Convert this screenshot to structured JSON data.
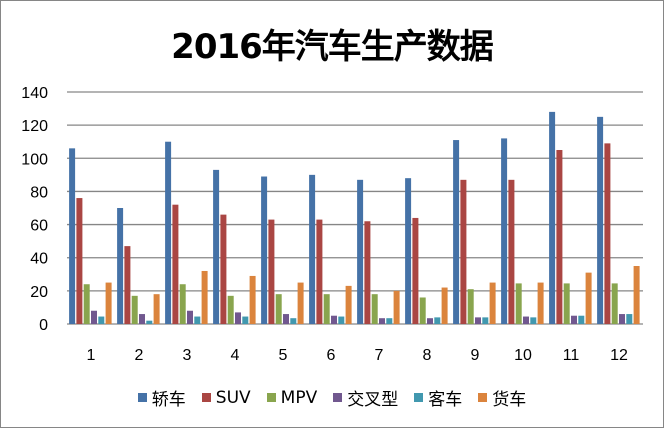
{
  "chart_data": {
    "type": "bar",
    "title": "2016年汽车生产数据",
    "xlabel": "",
    "ylabel": "",
    "ylim": [
      0,
      140
    ],
    "yticks": [
      0,
      20,
      40,
      60,
      80,
      100,
      120,
      140
    ],
    "grid": true,
    "legend_position": "bottom",
    "categories": [
      "1",
      "2",
      "3",
      "4",
      "5",
      "6",
      "7",
      "8",
      "9",
      "10",
      "11",
      "12"
    ],
    "series": [
      {
        "name": "轿车",
        "color": "#4572A7",
        "values": [
          106,
          70,
          110,
          93,
          89,
          90,
          87,
          88,
          111,
          112,
          128,
          125
        ]
      },
      {
        "name": "SUV",
        "color": "#AA4643",
        "values": [
          76,
          47,
          72,
          66,
          63,
          63,
          62,
          64,
          87,
          87,
          105,
          109
        ]
      },
      {
        "name": "MPV",
        "color": "#89A54E",
        "values": [
          24,
          17,
          24,
          17,
          18,
          18,
          18,
          16,
          21,
          24.5,
          24.5,
          24.5
        ]
      },
      {
        "name": "交叉型",
        "color": "#71588F",
        "values": [
          8,
          6,
          8,
          7,
          6,
          5,
          3.5,
          3.5,
          4,
          4.5,
          5,
          6
        ]
      },
      {
        "name": "客车",
        "color": "#4198AF",
        "values": [
          4.5,
          2,
          4.5,
          4.5,
          3.5,
          4.5,
          3.5,
          4,
          4,
          4,
          5,
          6
        ]
      },
      {
        "name": "货车",
        "color": "#DB843D",
        "values": [
          25,
          18,
          32,
          29,
          25,
          23,
          20,
          22,
          25,
          25,
          31,
          35
        ]
      }
    ]
  }
}
